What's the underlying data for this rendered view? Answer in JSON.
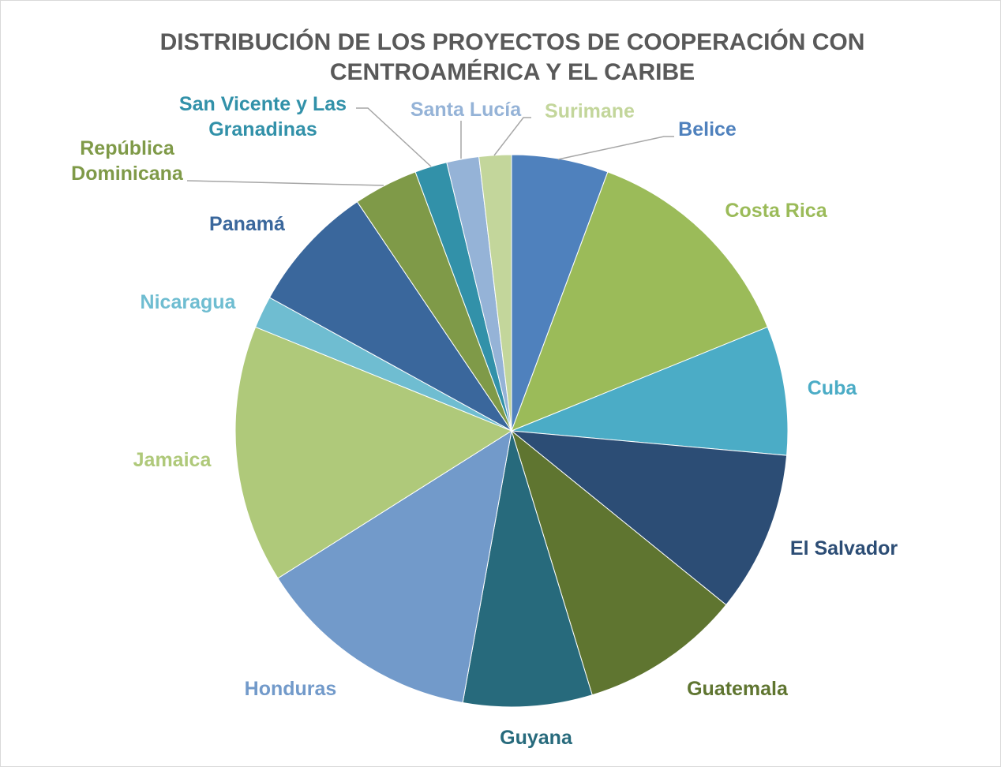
{
  "chart_data": {
    "type": "pie",
    "title": "DISTRIBUCIÓN DE LOS PROYECTOS DE COOPERACIÓN CON CENTROAMÉRICA Y EL CARIBE",
    "categories": [
      "Belice",
      "Costa Rica",
      "Cuba",
      "El Salvador",
      "Guatemala",
      "Guyana",
      "Honduras",
      "Jamaica",
      "Nicaragua",
      "Panamá",
      "República Dominicana",
      "San Vicente y Las Granadinas",
      "Santa Lucía",
      "Surimane"
    ],
    "values": [
      3,
      7,
      4,
      5,
      5,
      4,
      7,
      8,
      1,
      4,
      2,
      1,
      1,
      1
    ],
    "colors": [
      "#4f81bd",
      "#9bbb59",
      "#4bacc6",
      "#2c4d75",
      "#5f7530",
      "#276a7c",
      "#729aca",
      "#afc97a",
      "#6fbdd1",
      "#3a679c",
      "#7f9a48",
      "#3291a9",
      "#95b3d7",
      "#c3d69b"
    ]
  }
}
